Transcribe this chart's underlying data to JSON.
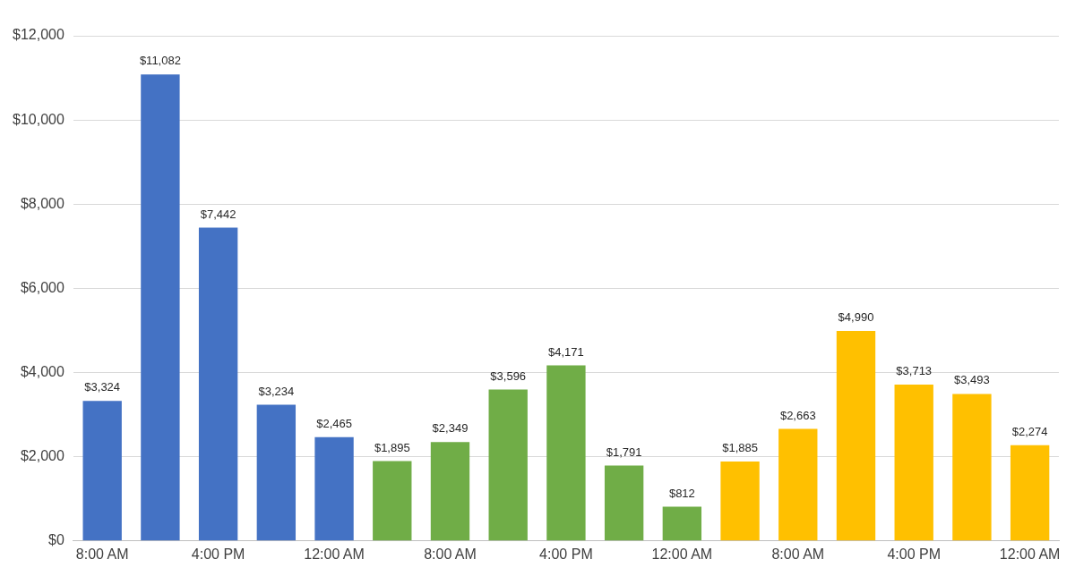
{
  "chart_data": {
    "type": "bar",
    "categories": [
      "8:00 AM",
      null,
      "4:00 PM",
      null,
      "12:00 AM",
      null,
      "8:00 AM",
      null,
      "4:00 PM",
      null,
      "12:00 AM",
      null,
      "8:00 AM",
      null,
      "4:00 PM",
      null,
      "12:00 AM"
    ],
    "values": [
      3324,
      11082,
      7442,
      3234,
      2465,
      1895,
      2349,
      3596,
      4171,
      1791,
      812,
      1885,
      2663,
      4990,
      3713,
      3493,
      2274
    ],
    "value_labels": [
      "$3,324",
      "$11,082",
      "$7,442",
      "$3,234",
      "$2,465",
      "$1,895",
      "$2,349",
      "$3,596",
      "$4,171",
      "$1,791",
      "$812",
      "$1,885",
      "$2,663",
      "$4,990",
      "$3,713",
      "$3,493",
      "$2,274"
    ],
    "colors": [
      "#4472c4",
      "#4472c4",
      "#4472c4",
      "#4472c4",
      "#4472c4",
      "#70ad47",
      "#70ad47",
      "#70ad47",
      "#70ad47",
      "#70ad47",
      "#70ad47",
      "#ffc000",
      "#ffc000",
      "#ffc000",
      "#ffc000",
      "#ffc000",
      "#ffc000"
    ],
    "ylim": [
      0,
      12000
    ],
    "yticks": [
      {
        "value": 0,
        "label": "$0"
      },
      {
        "value": 2000,
        "label": "$2,000"
      },
      {
        "value": 4000,
        "label": "$4,000"
      },
      {
        "value": 6000,
        "label": "$6,000"
      },
      {
        "value": 8000,
        "label": "$8,000"
      },
      {
        "value": 10000,
        "label": "$10,000"
      },
      {
        "value": 12000,
        "label": "$12,000"
      }
    ],
    "grid": "y",
    "legend": false
  }
}
